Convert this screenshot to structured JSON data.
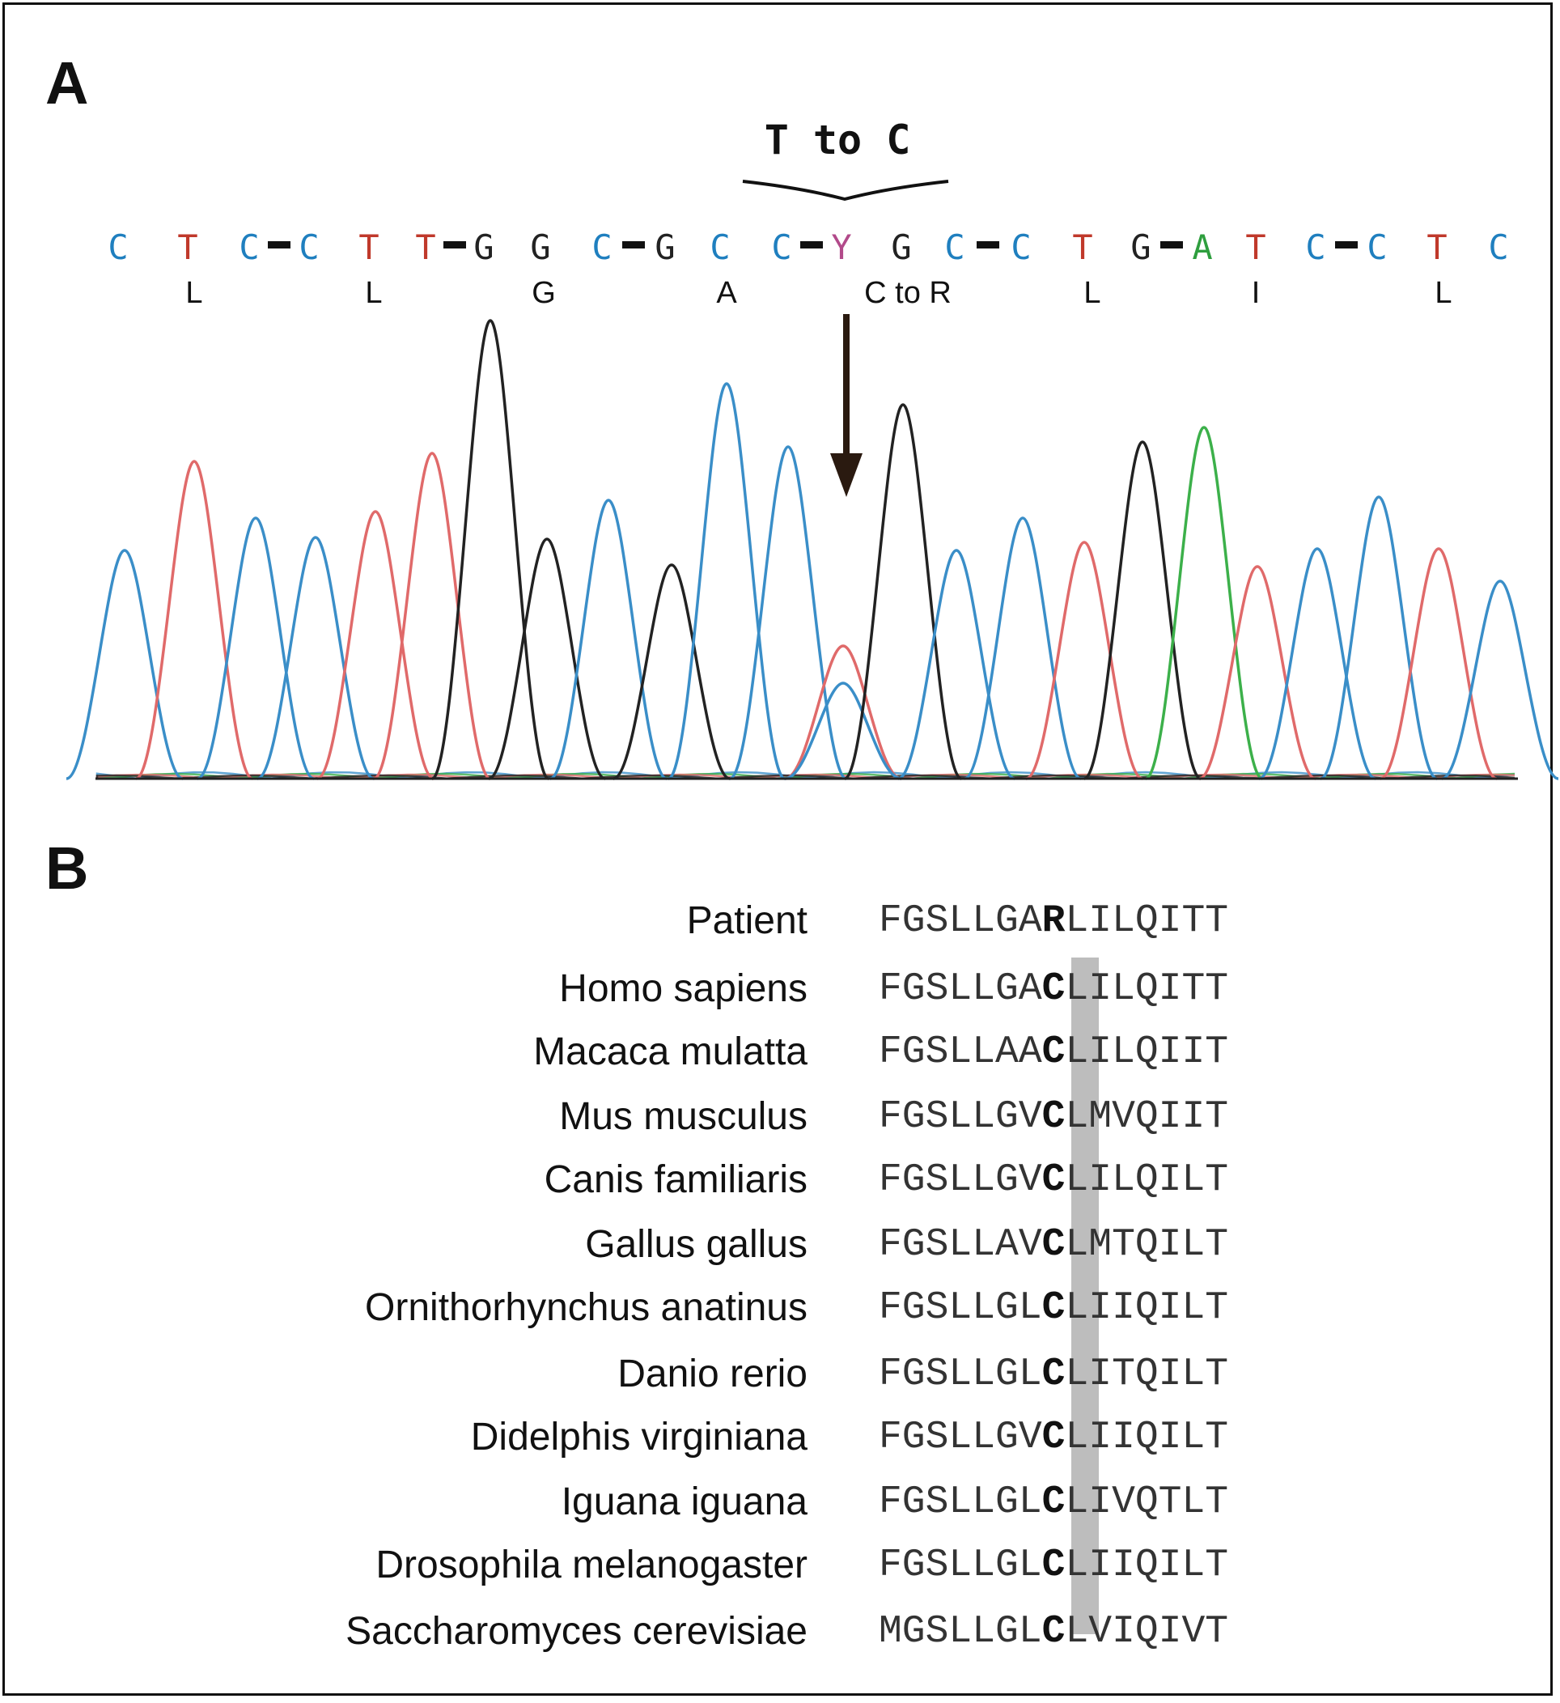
{
  "panel_a": {
    "label": "A",
    "mutation": "T to C",
    "bases": [
      {
        "b": "C",
        "color": "#1f7fbf"
      },
      {
        "b": "T",
        "color": "#c0392b"
      },
      {
        "b": "C",
        "color": "#1f7fbf"
      },
      {
        "b": "C",
        "color": "#1f7fbf"
      },
      {
        "b": "T",
        "color": "#c0392b"
      },
      {
        "b": "T",
        "color": "#c0392b"
      },
      {
        "b": "G",
        "color": "#222222"
      },
      {
        "b": "G",
        "color": "#222222"
      },
      {
        "b": "C",
        "color": "#1f7fbf"
      },
      {
        "b": "G",
        "color": "#222222"
      },
      {
        "b": "C",
        "color": "#1f7fbf"
      },
      {
        "b": "C",
        "color": "#1f7fbf"
      },
      {
        "b": "Y",
        "color": "#b24a8a"
      },
      {
        "b": "G",
        "color": "#222222"
      },
      {
        "b": "C",
        "color": "#1f7fbf"
      },
      {
        "b": "C",
        "color": "#1f7fbf"
      },
      {
        "b": "T",
        "color": "#c0392b"
      },
      {
        "b": "G",
        "color": "#222222"
      },
      {
        "b": "A",
        "color": "#2e9e3e"
      },
      {
        "b": "T",
        "color": "#c0392b"
      },
      {
        "b": "C",
        "color": "#1f7fbf"
      },
      {
        "b": "C",
        "color": "#1f7fbf"
      },
      {
        "b": "T",
        "color": "#c0392b"
      },
      {
        "b": "C",
        "color": "#1f7fbf"
      }
    ],
    "amino_acids": [
      "L",
      "L",
      "G",
      "A",
      "C to R",
      "L",
      "I",
      "L"
    ]
  },
  "panel_b": {
    "label": "B",
    "alignment": [
      {
        "species": "Patient",
        "left": "FGSLLGA",
        "residue": "R",
        "right": "LILQITT"
      },
      {
        "species": "Homo sapiens",
        "left": "FGSLLGA",
        "residue": "C",
        "right": "LILQITT"
      },
      {
        "species": "Macaca mulatta",
        "left": "FGSLLAA",
        "residue": "C",
        "right": "LILQIIT"
      },
      {
        "species": "Mus musculus",
        "left": "FGSLLGV",
        "residue": "C",
        "right": "LMVQIIT"
      },
      {
        "species": "Canis familiaris",
        "left": "FGSLLGV",
        "residue": "C",
        "right": "LILQILT"
      },
      {
        "species": "Gallus gallus",
        "left": "FGSLLAV",
        "residue": "C",
        "right": "LMTQILT"
      },
      {
        "species": "Ornithorhynchus anatinus",
        "left": "FGSLLGL",
        "residue": "C",
        "right": "LIIQILT"
      },
      {
        "species": "Danio rerio",
        "left": "FGSLLGL",
        "residue": "C",
        "right": "LITQILT"
      },
      {
        "species": "Didelphis virginiana",
        "left": "FGSLLGV",
        "residue": "C",
        "right": "LIIQILT"
      },
      {
        "species": "Iguana iguana",
        "left": "FGSLLGL",
        "residue": "C",
        "right": "LIVQTLT"
      },
      {
        "species": "Drosophila melanogaster",
        "left": "FGSLLGL",
        "residue": "C",
        "right": "LIIQILT"
      },
      {
        "species": "Saccharomyces cerevisiae",
        "left": "MGSLLGL",
        "residue": "C",
        "right": "LVIQIVT"
      }
    ]
  }
}
